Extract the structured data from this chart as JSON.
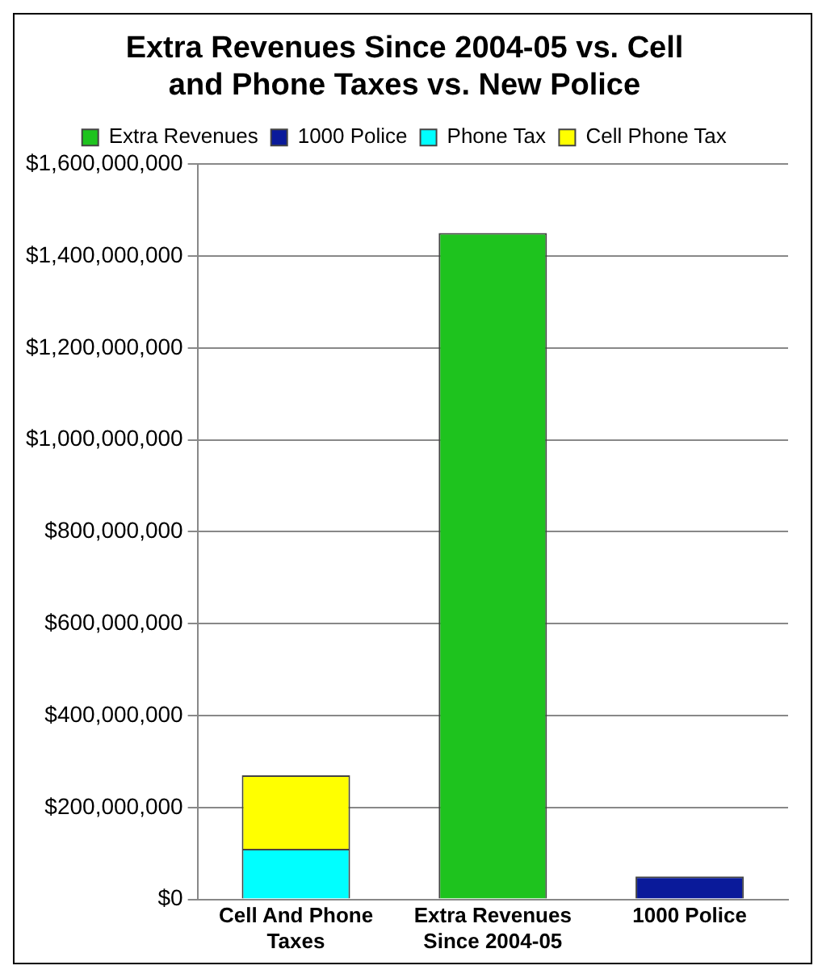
{
  "chart_data": {
    "type": "bar",
    "title": "Extra Revenues Since 2004-05 vs. Cell and Phone Taxes vs. New Police",
    "categories": [
      "Cell And Phone Taxes",
      "Extra Revenues Since 2004-05",
      "1000 Police"
    ],
    "stacked": true,
    "series": [
      {
        "name": "Extra Revenues",
        "color": "#1ec31e",
        "values": [
          null,
          1450000000,
          null
        ]
      },
      {
        "name": "1000 Police",
        "color": "#0a1a9a",
        "values": [
          null,
          null,
          50000000
        ]
      },
      {
        "name": "Phone Tax",
        "color": "#00ffff",
        "values": [
          110000000,
          null,
          null
        ]
      },
      {
        "name": "Cell Phone Tax",
        "color": "#ffff00",
        "values": [
          160000000,
          null,
          null
        ]
      }
    ],
    "ylim": [
      0,
      1600000000
    ],
    "yticks": [
      {
        "value": 0,
        "label": "$0"
      },
      {
        "value": 200000000,
        "label": "$200,000,000"
      },
      {
        "value": 400000000,
        "label": "$400,000,000"
      },
      {
        "value": 600000000,
        "label": "$600,000,000"
      },
      {
        "value": 800000000,
        "label": "$800,000,000"
      },
      {
        "value": 1000000000,
        "label": "$1,000,000,000"
      },
      {
        "value": 1200000000,
        "label": "$1,200,000,000"
      },
      {
        "value": 1400000000,
        "label": "$1,400,000,000"
      },
      {
        "value": 1600000000,
        "label": "$1,600,000,000"
      }
    ],
    "grid": "y",
    "legend": "top"
  }
}
